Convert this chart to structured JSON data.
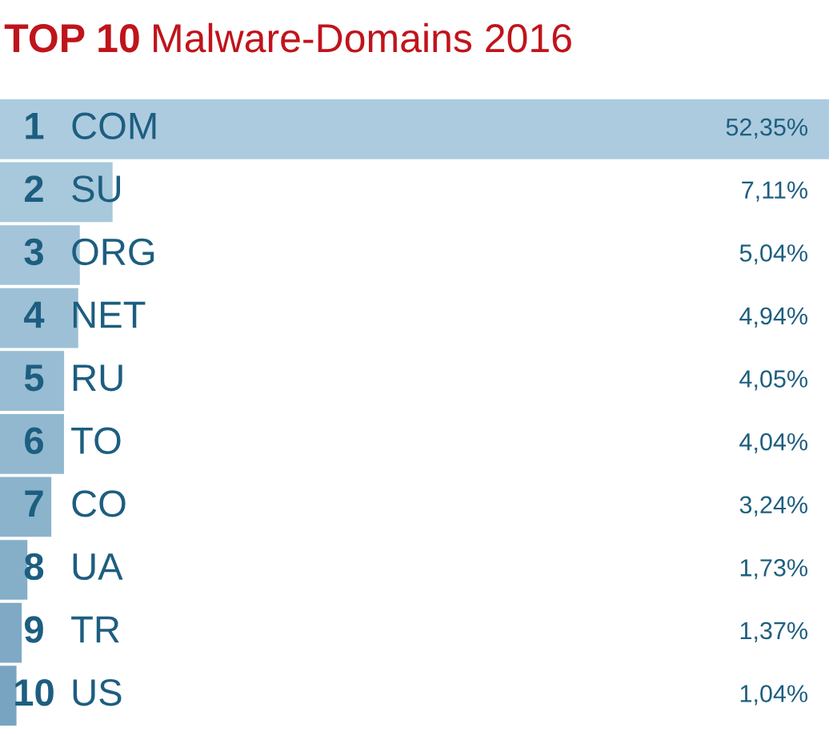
{
  "chart_data": {
    "type": "bar",
    "orientation": "horizontal",
    "title": "TOP 10 Malware-Domains 2016",
    "categories": [
      "COM",
      "SU",
      "ORG",
      "NET",
      "RU",
      "TO",
      "CO",
      "UA",
      "TR",
      "US"
    ],
    "values": [
      52.35,
      7.11,
      5.04,
      4.94,
      4.05,
      4.04,
      3.24,
      1.73,
      1.37,
      1.04
    ],
    "value_labels": [
      "52,35%",
      "7,11%",
      "5,04%",
      "4,94%",
      "4,05%",
      "4,04%",
      "3,24%",
      "1,73%",
      "1,37%",
      "1,04%"
    ],
    "colors": [
      "#adcbdf",
      "#a8c8dc",
      "#a3c4d9",
      "#9ec0d6",
      "#98bcd3",
      "#92b8d0",
      "#8cb3cc",
      "#85aec9",
      "#7fa9c5",
      "#78a4c1"
    ],
    "annotations": [
      "1",
      "2",
      "3",
      "4",
      "5",
      "6",
      "7",
      "8",
      "9",
      "10"
    ]
  }
}
